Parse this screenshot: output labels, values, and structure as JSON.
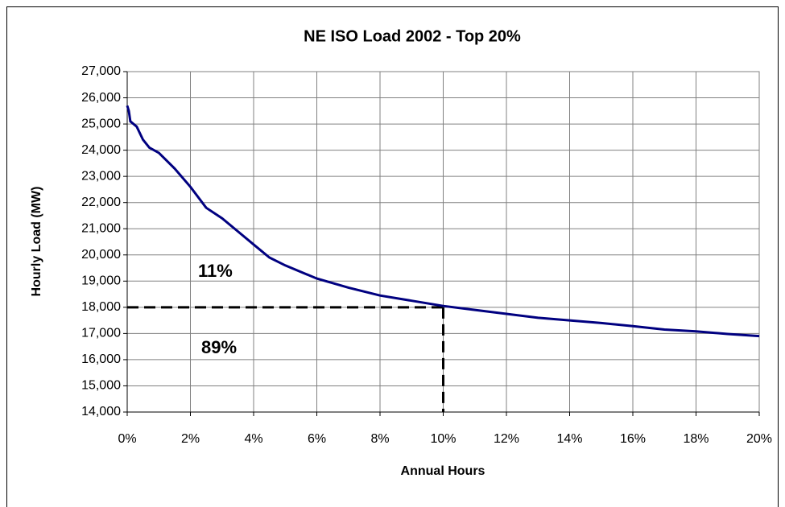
{
  "chart_data": {
    "type": "line",
    "title": "NE ISO Load 2002 - Top 20%",
    "x_label": "Annual Hours",
    "y_label": "Hourly Load (MW)",
    "annotations": [
      "11%",
      "89%"
    ],
    "x": [
      0,
      0.05,
      0.1,
      0.3,
      0.5,
      0.7,
      1,
      1.5,
      2,
      2.5,
      3,
      3.5,
      4,
      4.5,
      5,
      6,
      7,
      8,
      9,
      10,
      11,
      12,
      13,
      14,
      15,
      16,
      17,
      18,
      19,
      20
    ],
    "values": [
      25700,
      25500,
      25100,
      24900,
      24400,
      24100,
      23900,
      23300,
      22600,
      21800,
      21400,
      20900,
      20400,
      19900,
      19600,
      19100,
      18750,
      18450,
      18250,
      18050,
      17900,
      17750,
      17600,
      17500,
      17400,
      17280,
      17150,
      17080,
      16980,
      16900
    ],
    "color": "#000080",
    "reference": {
      "x": 10,
      "y": 18000
    },
    "xlim": [
      0,
      20
    ],
    "xticks": [
      {
        "value": 0,
        "label": "0%"
      },
      {
        "value": 2,
        "label": "2%"
      },
      {
        "value": 4,
        "label": "4%"
      },
      {
        "value": 6,
        "label": "6%"
      },
      {
        "value": 8,
        "label": "8%"
      },
      {
        "value": 10,
        "label": "10%"
      },
      {
        "value": 12,
        "label": "12%"
      },
      {
        "value": 14,
        "label": "14%"
      },
      {
        "value": 16,
        "label": "16%"
      },
      {
        "value": 18,
        "label": "18%"
      },
      {
        "value": 20,
        "label": "20%"
      }
    ],
    "ylim": [
      14000,
      27000
    ],
    "yticks": [
      {
        "value": 14000,
        "label": "14,000"
      },
      {
        "value": 15000,
        "label": "15,000"
      },
      {
        "value": 16000,
        "label": "16,000"
      },
      {
        "value": 17000,
        "label": "17,000"
      },
      {
        "value": 18000,
        "label": "18,000"
      },
      {
        "value": 19000,
        "label": "19,000"
      },
      {
        "value": 20000,
        "label": "20,000"
      },
      {
        "value": 21000,
        "label": "21,000"
      },
      {
        "value": 22000,
        "label": "22,000"
      },
      {
        "value": 23000,
        "label": "23,000"
      },
      {
        "value": 24000,
        "label": "24,000"
      },
      {
        "value": 25000,
        "label": "25,000"
      },
      {
        "value": 26000,
        "label": "26,000"
      },
      {
        "value": 27000,
        "label": "27,000"
      }
    ],
    "grid": true
  }
}
